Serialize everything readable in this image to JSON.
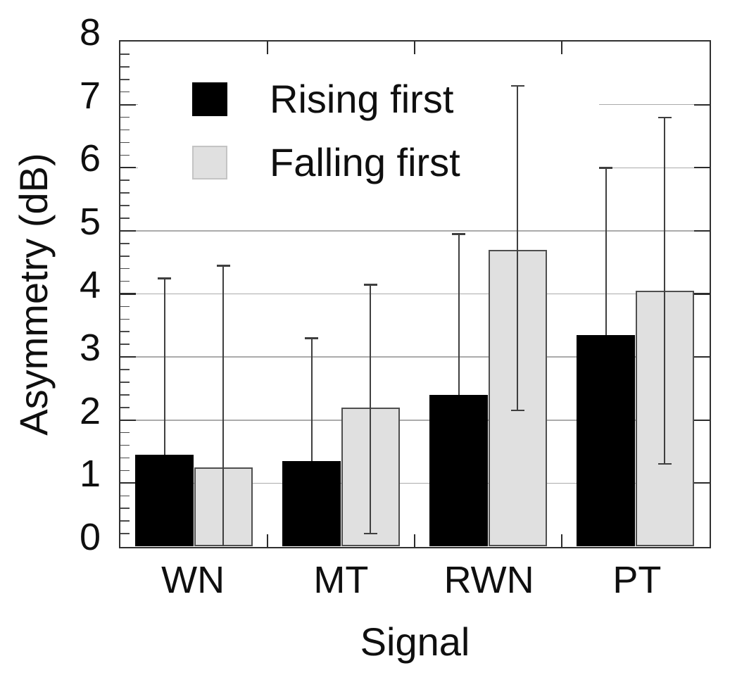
{
  "chart_data": {
    "type": "bar",
    "title": "",
    "xlabel": "Signal",
    "ylabel": "Asymmetry (dB)",
    "categories": [
      "WN",
      "MT",
      "RWN",
      "PT"
    ],
    "ylim": [
      0,
      8
    ],
    "ytick_labels": [
      "0",
      "1",
      "2",
      "3",
      "4",
      "5",
      "6",
      "7",
      "8"
    ],
    "yminor_interval": 0.2,
    "grid": "horizontal gridlines at each integer, full plot frame with inward ticks on all sides",
    "legend_position": "upper left inside plot, white opaque background",
    "series": [
      {
        "name": "Rising first",
        "fill": "#000000",
        "border": "#000000",
        "values": [
          1.45,
          1.35,
          2.4,
          3.35
        ],
        "error_top": [
          4.25,
          3.3,
          4.95,
          6.0
        ],
        "error_bottom": [
          null,
          null,
          null,
          null
        ]
      },
      {
        "name": "Falling first",
        "fill": "#e0e0e0",
        "border": "#4f4f4f",
        "values": [
          1.25,
          2.2,
          4.7,
          4.05
        ],
        "error_top": [
          4.45,
          4.15,
          7.3,
          6.8
        ],
        "error_bottom": [
          0,
          0.2,
          2.15,
          1.3
        ]
      }
    ],
    "colors": {
      "frame": "#303030",
      "gridline": "#ababab",
      "error_bar": "#3f3f3f",
      "text": "#0f0f0f"
    }
  }
}
